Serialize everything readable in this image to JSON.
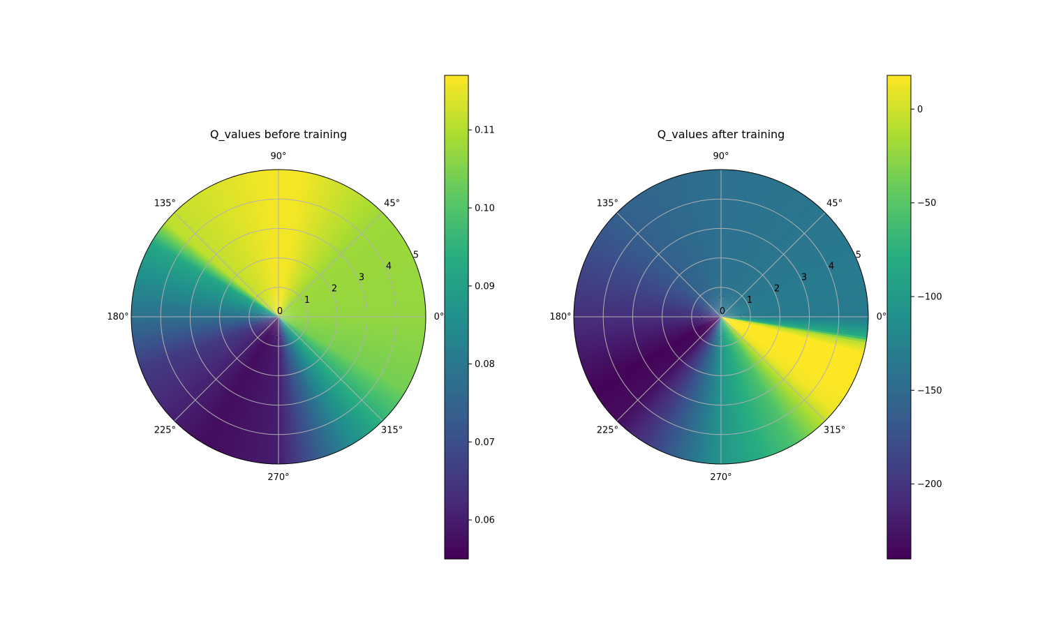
{
  "chart_data": [
    {
      "type": "heatmap",
      "projection": "polar",
      "title": "Q_values before training",
      "theta_tick_labels": [
        "0°",
        "45°",
        "90°",
        "135°",
        "180°",
        "225°",
        "270°",
        "315°"
      ],
      "theta_ticks_deg": [
        0,
        45,
        90,
        135,
        180,
        225,
        270,
        315
      ],
      "r_tick_labels": [
        "0",
        "1",
        "2",
        "3",
        "4",
        "5"
      ],
      "r_ticks": [
        0,
        1,
        2,
        3,
        4,
        5
      ],
      "rlim": [
        0,
        5
      ],
      "grid": true,
      "colormap": "viridis",
      "colorbar": {
        "vmin": 0.055,
        "vmax": 0.117,
        "ticks": [
          0.06,
          0.07,
          0.08,
          0.09,
          0.1,
          0.11
        ],
        "tick_labels": [
          "0.06",
          "0.07",
          "0.08",
          "0.09",
          "0.10",
          "0.11"
        ]
      },
      "angular_profile": {
        "theta_deg": [
          0,
          45,
          80,
          95,
          140,
          150,
          180,
          200,
          240,
          270,
          300,
          315,
          330,
          360
        ],
        "values": [
          0.107,
          0.108,
          0.116,
          0.116,
          0.111,
          0.092,
          0.078,
          0.066,
          0.057,
          0.06,
          0.085,
          0.095,
          0.104,
          0.107
        ]
      }
    },
    {
      "type": "heatmap",
      "projection": "polar",
      "title": "Q_values after training",
      "theta_tick_labels": [
        "0°",
        "45°",
        "90°",
        "135°",
        "180°",
        "225°",
        "270°",
        "315°"
      ],
      "theta_ticks_deg": [
        0,
        45,
        90,
        135,
        180,
        225,
        270,
        315
      ],
      "r_tick_labels": [
        "0",
        "1",
        "2",
        "3",
        "4",
        "5"
      ],
      "r_ticks": [
        0,
        1,
        2,
        3,
        4,
        5
      ],
      "rlim": [
        0,
        5
      ],
      "grid": true,
      "colormap": "viridis",
      "colorbar": {
        "vmin": -240,
        "vmax": 18,
        "ticks": [
          0,
          -50,
          -100,
          -150,
          -200
        ],
        "tick_labels": [
          "0",
          "−50",
          "−100",
          "−150",
          "−200"
        ]
      },
      "angular_profile": {
        "theta_deg": [
          0,
          10,
          20,
          45,
          90,
          135,
          180,
          210,
          225,
          240,
          270,
          300,
          320,
          335,
          345,
          350,
          352,
          360
        ],
        "values": [
          -135,
          -132,
          -133,
          -138,
          -143,
          -160,
          -205,
          -238,
          -232,
          -195,
          -105,
          -55,
          12,
          22,
          22,
          -10,
          -80,
          -135
        ]
      }
    }
  ]
}
